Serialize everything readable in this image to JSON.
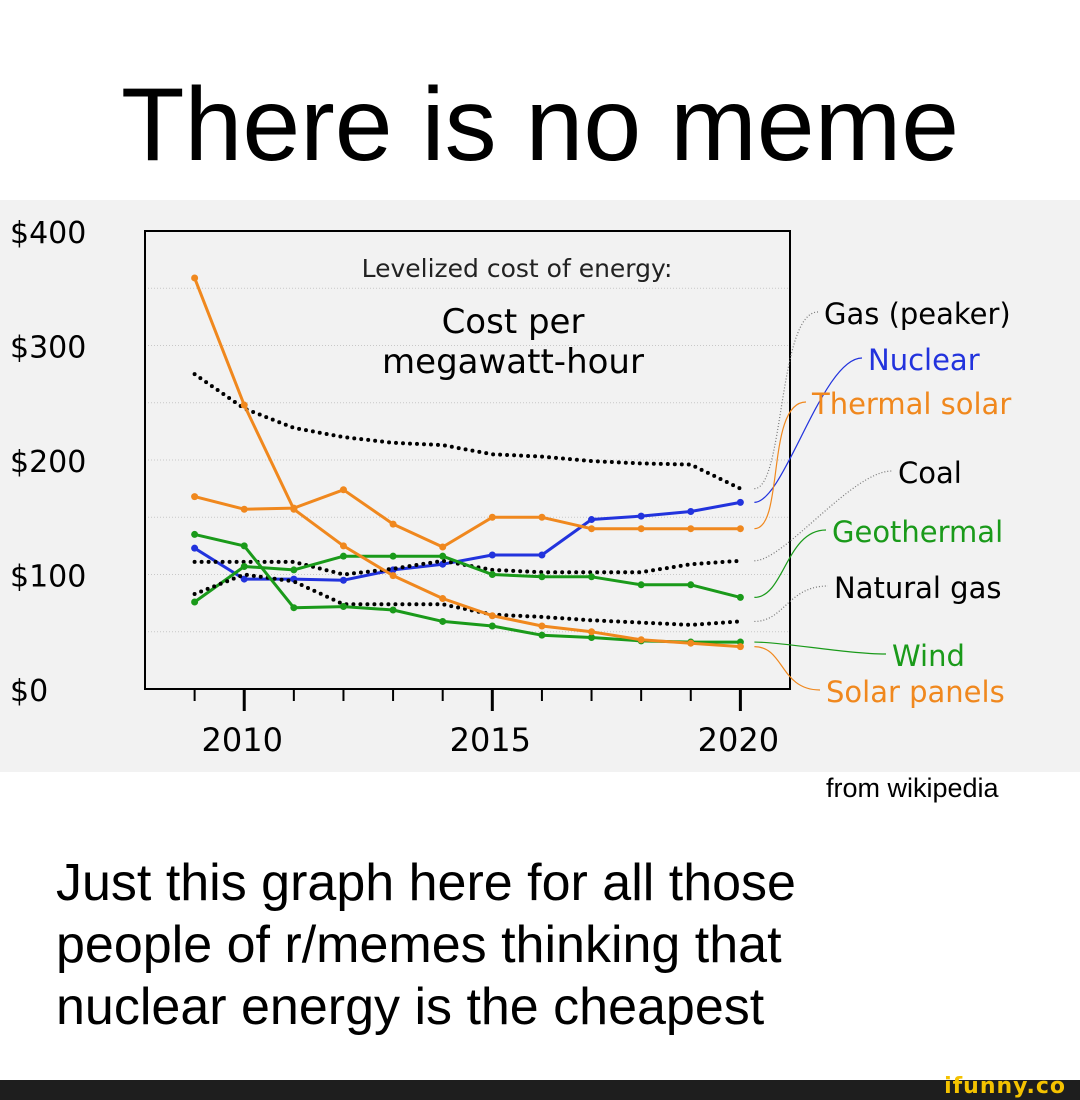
{
  "headline": "There is no meme",
  "credit": "from wikipedia",
  "caption": {
    "lines": [
      "Just this graph here for all those",
      "people of r/memes thinking that",
      "nuclear energy is the cheapest"
    ]
  },
  "watermark": "ifunny.co",
  "chart_data": {
    "type": "line",
    "title": "Levelized cost of energy:",
    "subtitle_lines": [
      "Cost per",
      "megawatt-hour"
    ],
    "y_tick_labels": [
      "$400",
      "$300",
      "$200",
      "$100",
      "$0"
    ],
    "y_tick_values": [
      400,
      300,
      200,
      100,
      0
    ],
    "x_tick_labels": [
      "2010",
      "2015",
      "2020"
    ],
    "x_tick_values": [
      2010,
      2015,
      2020
    ],
    "xlim": [
      2008,
      2021
    ],
    "ylim": [
      0,
      400
    ],
    "grid": true,
    "legend": "right, labels beside line ends",
    "series": [
      {
        "name": "Gas (peaker)",
        "color": "#000000",
        "style": "dotted",
        "x": [
          2009,
          2010,
          2011,
          2012,
          2013,
          2014,
          2015,
          2016,
          2017,
          2018,
          2019,
          2020
        ],
        "y": [
          275,
          245,
          228,
          220,
          215,
          213,
          205,
          203,
          199,
          197,
          196,
          175
        ]
      },
      {
        "name": "Nuclear",
        "color": "#2233dd",
        "style": "solid",
        "x": [
          2009,
          2010,
          2011,
          2012,
          2013,
          2014,
          2015,
          2016,
          2017,
          2018,
          2019,
          2020
        ],
        "y": [
          123,
          96,
          96,
          95,
          104,
          109,
          117,
          117,
          148,
          151,
          155,
          163
        ]
      },
      {
        "name": "Thermal solar",
        "color": "#f0881e",
        "style": "solid",
        "x": [
          2009,
          2010,
          2011,
          2012,
          2013,
          2014,
          2015,
          2016,
          2017,
          2018,
          2019,
          2020
        ],
        "y": [
          168,
          157,
          158,
          174,
          144,
          124,
          150,
          150,
          140,
          140,
          140,
          140
        ]
      },
      {
        "name": "Coal",
        "color": "#000000",
        "style": "dotted",
        "x": [
          2009,
          2010,
          2011,
          2012,
          2013,
          2014,
          2015,
          2016,
          2017,
          2018,
          2019,
          2020
        ],
        "y": [
          111,
          111,
          111,
          100,
          105,
          112,
          104,
          102,
          102,
          102,
          109,
          112
        ]
      },
      {
        "name": "Geothermal",
        "color": "#1a9a1a",
        "style": "solid",
        "x": [
          2009,
          2010,
          2011,
          2012,
          2013,
          2014,
          2015,
          2016,
          2017,
          2018,
          2019,
          2020
        ],
        "y": [
          76,
          107,
          104,
          116,
          116,
          116,
          100,
          98,
          98,
          91,
          91,
          80
        ]
      },
      {
        "name": "Natural gas",
        "color": "#000000",
        "style": "dotted",
        "x": [
          2009,
          2010,
          2011,
          2012,
          2013,
          2014,
          2015,
          2016,
          2017,
          2018,
          2019,
          2020
        ],
        "y": [
          83,
          100,
          94,
          74,
          74,
          74,
          65,
          63,
          60,
          58,
          56,
          59
        ]
      },
      {
        "name": "Wind",
        "color": "#1a9a1a",
        "style": "solid",
        "x": [
          2009,
          2010,
          2011,
          2012,
          2013,
          2014,
          2015,
          2016,
          2017,
          2018,
          2019,
          2020
        ],
        "y": [
          135,
          125,
          71,
          72,
          69,
          59,
          55,
          47,
          45,
          42,
          41,
          41
        ]
      },
      {
        "name": "Solar panels",
        "color": "#f0881e",
        "style": "solid",
        "x": [
          2009,
          2010,
          2011,
          2012,
          2013,
          2014,
          2015,
          2016,
          2017,
          2018,
          2019,
          2020
        ],
        "y": [
          359,
          248,
          157,
          125,
          99,
          79,
          64,
          55,
          50,
          43,
          40,
          37
        ]
      }
    ]
  }
}
